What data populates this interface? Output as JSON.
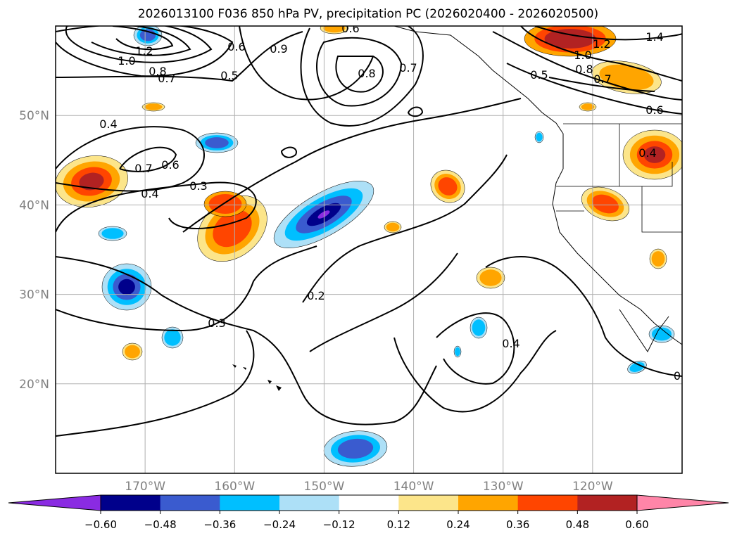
{
  "chart_data": {
    "type": "map",
    "title": "2026013100 F036 850 hPa PV, precipitation PC (2026020400 - 2026020500)",
    "lon_range": [
      -180,
      -110
    ],
    "lat_range": [
      10,
      60
    ],
    "lon_ticks": [
      "170°W",
      "160°W",
      "150°W",
      "140°W",
      "130°W",
      "120°W"
    ],
    "lat_ticks": [
      "50°N",
      "40°N",
      "30°N",
      "20°N"
    ],
    "gridlines": true,
    "contour_labels": [
      "1.2",
      "1.0",
      "0.8",
      "0.7",
      "0.5",
      "0.6",
      "0.9",
      "0.6",
      "0.8",
      "0.7",
      "0.5",
      "0.4",
      "0.7",
      "0.6",
      "0.4",
      "0.3",
      "0.2",
      "0.3",
      "0.4",
      "1.4",
      "1.2",
      "1.0",
      "0.8",
      "0.7",
      "0.6",
      "0.4",
      "0"
    ],
    "colorbar": {
      "ticks": [
        "−0.60",
        "−0.48",
        "−0.36",
        "−0.24",
        "−0.12",
        "0.12",
        "0.24",
        "0.36",
        "0.48",
        "0.60"
      ],
      "colors": [
        "#8a2be2",
        "#00008b",
        "#3a5bcf",
        "#00bfff",
        "#ade0f7",
        "#ffffff",
        "#fce58a",
        "#ffa500",
        "#ff4500",
        "#b22222",
        "#ff85a8"
      ],
      "extend": "both"
    }
  }
}
